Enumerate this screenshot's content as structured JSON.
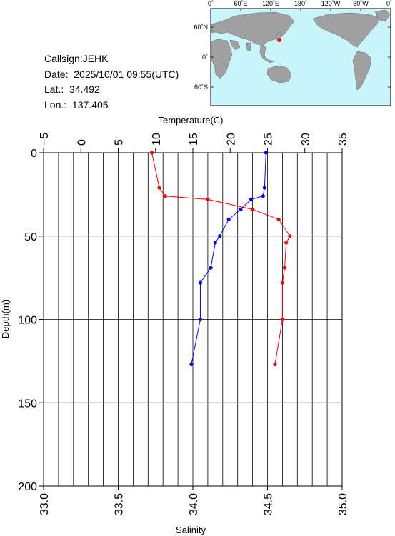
{
  "info": {
    "callsign": "Callsign:JEHK",
    "date": "Date:  2025/10/01 09:55(UTC)",
    "lat": "Lat.:  34.492",
    "lon": "Lon.:  137.405"
  },
  "map": {
    "top_labels": [
      "0˚",
      "60˚E",
      "120˚E",
      "180˚",
      "120˚W",
      "60˚W",
      "0˚"
    ],
    "left_labels": [
      "60˚N",
      "0˚",
      "60˚S"
    ],
    "ocean_color": "#c8f4fc",
    "land_color": "#a0a0a0",
    "marker_color": "#ff0000"
  },
  "chart_data": {
    "type": "line",
    "x_top_label": "Temperature(C)",
    "x_bottom_label": "Salinity",
    "ylabel": "Depth(m)",
    "temperature_ticks": [
      "−5",
      "0",
      "5",
      "10",
      "15",
      "20",
      "25",
      "30",
      "35"
    ],
    "salinity_ticks": [
      "33.0",
      "33.5",
      "34.0",
      "34.5",
      "35.0"
    ],
    "depth_ticks": [
      "0",
      "50",
      "100",
      "150",
      "200"
    ],
    "temperature_range": [
      -5,
      35
    ],
    "salinity_range": [
      33.0,
      35.0
    ],
    "depth_range": [
      0,
      200
    ],
    "grid": true,
    "series": [
      {
        "color": "#ff0000",
        "axis": "temperature",
        "points": [
          [
            9.5,
            0
          ],
          [
            10.5,
            21
          ],
          [
            11.3,
            26
          ],
          [
            17.0,
            28
          ],
          [
            23.0,
            34
          ],
          [
            26.5,
            40
          ],
          [
            28.0,
            50
          ],
          [
            27.5,
            54
          ],
          [
            27.3,
            69
          ],
          [
            27.0,
            78
          ],
          [
            27.0,
            100
          ],
          [
            26.0,
            127
          ]
        ]
      },
      {
        "color": "#0000ff",
        "axis": "salinity",
        "points": [
          [
            34.49,
            0
          ],
          [
            34.48,
            21
          ],
          [
            34.47,
            26
          ],
          [
            34.39,
            28
          ],
          [
            34.32,
            34
          ],
          [
            34.24,
            40
          ],
          [
            34.18,
            50
          ],
          [
            34.15,
            54
          ],
          [
            34.12,
            69
          ],
          [
            34.05,
            78
          ],
          [
            34.05,
            100
          ],
          [
            33.99,
            127
          ]
        ]
      }
    ]
  }
}
